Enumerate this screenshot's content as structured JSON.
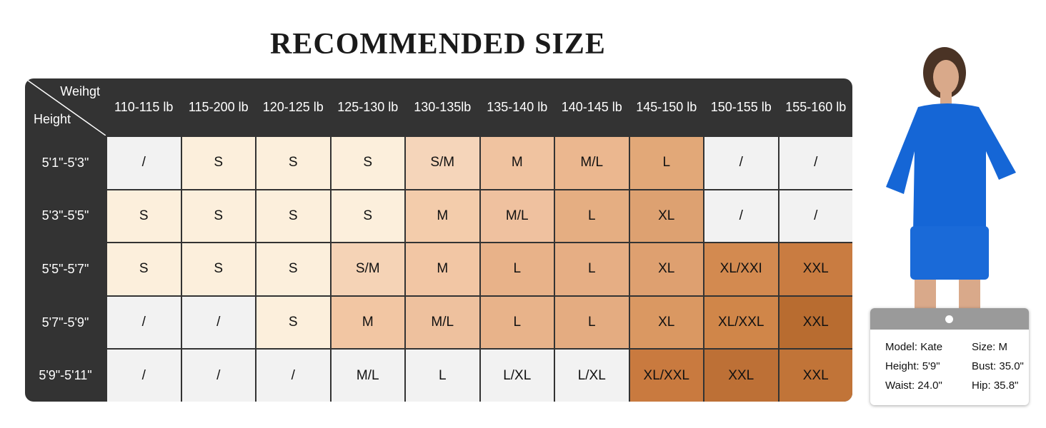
{
  "title": "RECOMMENDED SIZE",
  "table": {
    "corner_top": "Weihgt",
    "corner_bottom": "Height",
    "columns": [
      "110-115 lb",
      "115-200 lb",
      "120-125 lb",
      "125-130 lb",
      "130-135lb",
      "135-140 lb",
      "140-145 lb",
      "145-150 lb",
      "150-155 lb",
      "155-160 lb"
    ],
    "row_headers": [
      "5'1\"-5'3\"",
      "5'3\"-5'5\"",
      "5'5\"-5'7\"",
      "5'7\"-5'9\"",
      "5'9\"-5'11\""
    ],
    "rows": [
      [
        "/",
        "S",
        "S",
        "S",
        "S/M",
        "M",
        "M/L",
        "L",
        "/",
        "/"
      ],
      [
        "S",
        "S",
        "S",
        "S",
        "M",
        "M/L",
        "L",
        "XL",
        "/",
        "/"
      ],
      [
        "S",
        "S",
        "S",
        "S/M",
        "M",
        "L",
        "L",
        "XL",
        "XL/XXI",
        "XXL"
      ],
      [
        "/",
        "/",
        "S",
        "M",
        "M/L",
        "L",
        "L",
        "XL",
        "XL/XXL",
        "XXL"
      ],
      [
        "/",
        "/",
        "/",
        "M/L",
        "L",
        "L/XL",
        "L/XL",
        "XL/XXL",
        "XXL",
        "XXL"
      ]
    ],
    "cell_colors": [
      [
        "#f2f2f2",
        "#fcefdc",
        "#fcefdc",
        "#fcefdc",
        "#f5d5ba",
        "#f0c3a0",
        "#ebb78f",
        "#e2a878",
        "#f2f2f2",
        "#f2f2f2"
      ],
      [
        "#fcefdc",
        "#fcefdc",
        "#fcefdc",
        "#fcefdc",
        "#f3ccab",
        "#efc19f",
        "#e5ae82",
        "#dda171",
        "#f2f2f2",
        "#f2f2f2"
      ],
      [
        "#fcefdc",
        "#fcefdc",
        "#fcefdc",
        "#f5d3b6",
        "#f2c6a4",
        "#e8b289",
        "#e6ae84",
        "#dea070",
        "#d38a50",
        "#c97c41"
      ],
      [
        "#f2f2f2",
        "#f2f2f2",
        "#fcefdc",
        "#f2c6a3",
        "#eec19e",
        "#e8b38a",
        "#e4ac81",
        "#da9862",
        "#d08649",
        "#b86c30"
      ],
      [
        "#f2f2f2",
        "#f2f2f2",
        "#f2f2f2",
        "#f2f2f2",
        "#f2f2f2",
        "#f2f2f2",
        "#f2f2f2",
        "#c97a3f",
        "#bd7036",
        "#c17438"
      ]
    ]
  },
  "model_card": {
    "items": [
      "Model: Kate",
      "Size: M",
      "Height: 5'9\"",
      "Bust: 35.0\"",
      "Waist: 24.0\"",
      "Hip: 35.8\""
    ]
  }
}
